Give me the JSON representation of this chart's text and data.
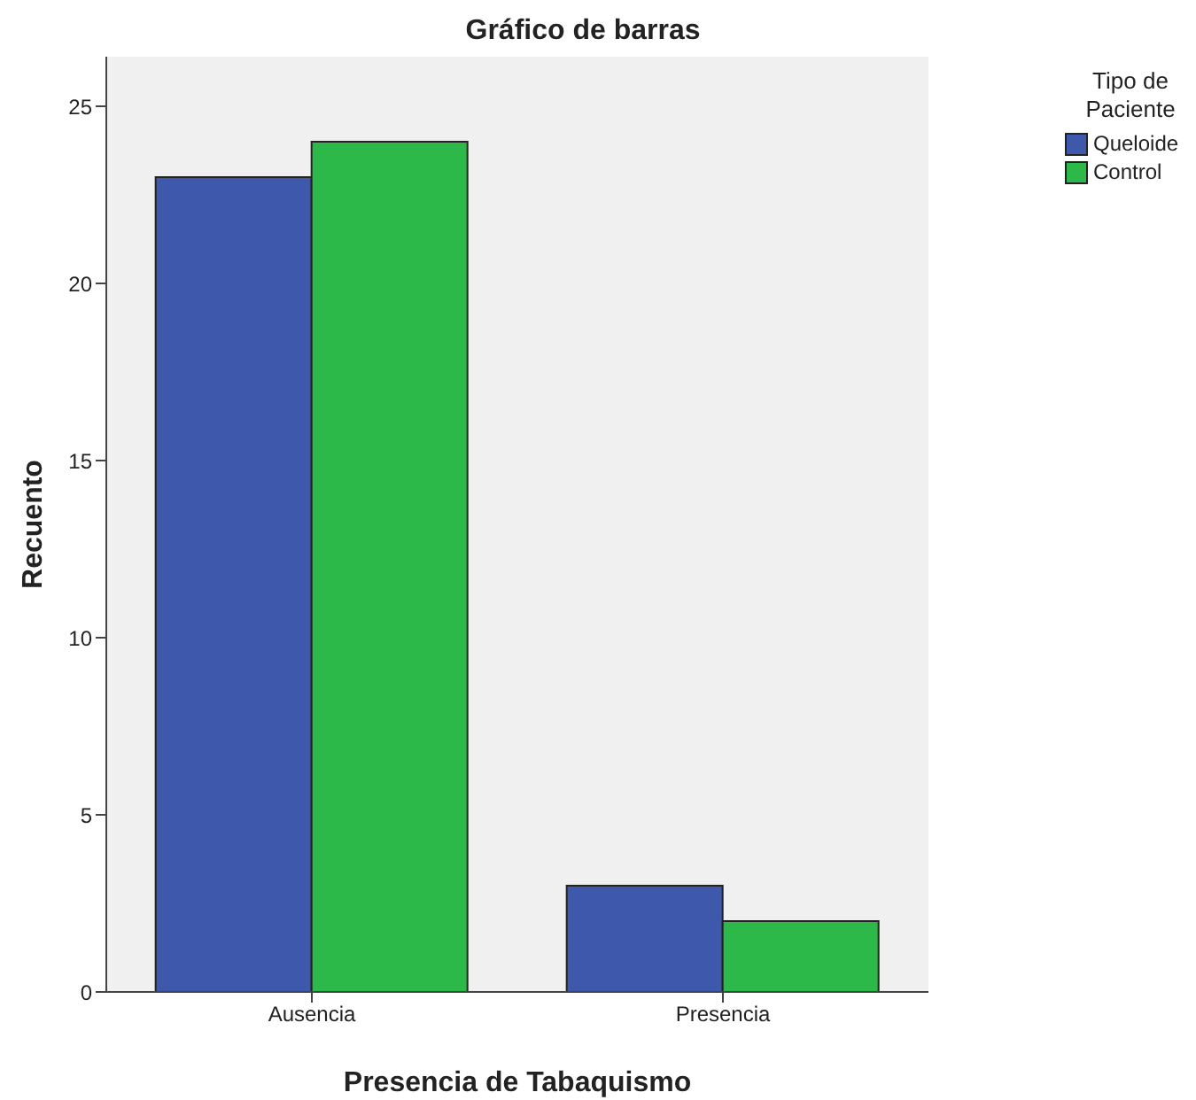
{
  "chart_data": {
    "type": "bar",
    "title": "Gráfico de barras",
    "xlabel": "Presencia de Tabaquismo",
    "ylabel": "Recuento",
    "legend_title": "Tipo de Paciente",
    "categories": [
      "Ausencia",
      "Presencia"
    ],
    "series": [
      {
        "name": "Queloide",
        "color": "#3e58ac",
        "values": [
          23,
          3
        ]
      },
      {
        "name": "Control",
        "color": "#2db84a",
        "values": [
          24,
          2
        ]
      }
    ],
    "ylim": [
      0,
      26.4
    ],
    "yticks": [
      0,
      5,
      10,
      15,
      20,
      25
    ],
    "grid": false,
    "legend": "top right"
  }
}
